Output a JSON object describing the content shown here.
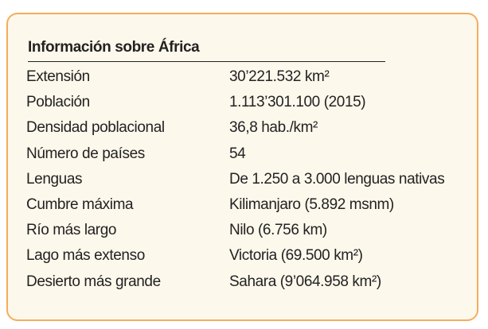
{
  "title": "Información sobre África",
  "rows": [
    [
      "Extensión",
      "30’221.532 km²"
    ],
    [
      "Población",
      "1.113’301.100 (2015)"
    ],
    [
      "Densidad poblacional",
      "36,8 hab./km²"
    ],
    [
      "Número de países",
      "54"
    ],
    [
      "Lenguas",
      "De 1.250 a 3.000 lenguas nativas"
    ],
    [
      "Cumbre máxima",
      "Kilimanjaro (5.892 msnm)"
    ],
    [
      "Río más largo",
      "Nilo (6.756 km)"
    ],
    [
      "Lago más extenso",
      "Victoria (69.500 km²)"
    ],
    [
      "Desierto más grande",
      "Sahara (9’064.958 km²)"
    ]
  ]
}
